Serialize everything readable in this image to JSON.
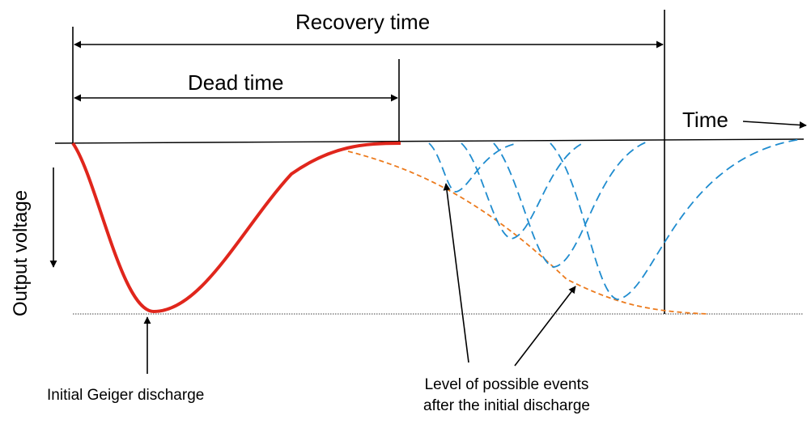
{
  "labels": {
    "recovery_time": "Recovery time",
    "dead_time": "Dead time",
    "time_axis": "Time",
    "output_voltage": "Output voltage",
    "initial_discharge": "Initial Geiger discharge",
    "possible_events_line1": "Level of possible events",
    "possible_events_line2": "after the initial discharge"
  },
  "colors": {
    "initial_pulse": "#e0261c",
    "possible_pulses": "#1f8ccf",
    "level_envelope": "#ec7a1c",
    "lines": "#000000"
  }
}
